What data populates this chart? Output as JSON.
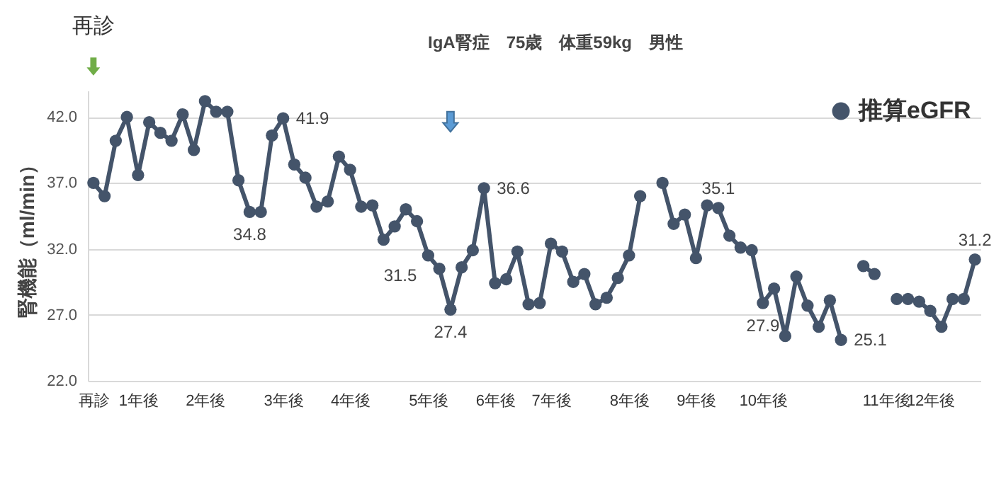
{
  "chart_data": {
    "type": "line",
    "title": "IgA腎症　75歳　体重59kg　男性",
    "ylabel": "腎機能（ml/min）",
    "annotations": [
      "再診"
    ],
    "categories": [
      "再診",
      null,
      null,
      null,
      "1年後",
      null,
      null,
      null,
      null,
      null,
      "2年後",
      null,
      null,
      null,
      null,
      null,
      null,
      "3年後",
      null,
      null,
      null,
      null,
      null,
      "4年後",
      null,
      null,
      null,
      null,
      null,
      null,
      "5年後",
      null,
      null,
      null,
      null,
      null,
      "6年後",
      null,
      null,
      null,
      null,
      "7年後",
      null,
      null,
      null,
      null,
      null,
      null,
      "8年後",
      null,
      null,
      null,
      null,
      null,
      "9年後",
      null,
      null,
      null,
      null,
      null,
      "10年後",
      null,
      null,
      null,
      null,
      null,
      null,
      null,
      null,
      null,
      null,
      "11年後",
      null,
      null,
      null,
      "12年後",
      null,
      null,
      null,
      null
    ],
    "series": [
      {
        "name": "推算eGFR",
        "color": "#44546a",
        "values": [
          37.0,
          36.0,
          40.2,
          42.0,
          37.6,
          41.6,
          40.8,
          40.2,
          42.2,
          39.5,
          43.2,
          42.4,
          42.4,
          37.2,
          34.8,
          34.8,
          40.6,
          41.9,
          38.4,
          37.4,
          35.2,
          35.6,
          39.0,
          38.0,
          35.2,
          35.3,
          32.7,
          33.7,
          35.0,
          34.1,
          31.5,
          30.5,
          27.4,
          30.6,
          31.9,
          36.6,
          29.4,
          29.7,
          31.8,
          27.8,
          27.9,
          32.4,
          31.8,
          29.5,
          30.1,
          27.8,
          28.3,
          29.8,
          31.5,
          36.0,
          null,
          37.0,
          33.9,
          34.6,
          31.3,
          35.3,
          35.1,
          33.0,
          32.1,
          31.9,
          27.9,
          29.0,
          25.4,
          29.9,
          27.7,
          26.1,
          28.1,
          25.1,
          null,
          30.7,
          30.1,
          null,
          28.2,
          28.2,
          28.0,
          27.3,
          26.1,
          28.2,
          28.2,
          31.2
        ],
        "value_labels": [
          null,
          null,
          null,
          null,
          null,
          null,
          null,
          null,
          null,
          null,
          null,
          null,
          null,
          null,
          "34.8",
          null,
          null,
          "41.9",
          null,
          null,
          null,
          null,
          null,
          null,
          null,
          null,
          null,
          null,
          null,
          null,
          "31.5",
          null,
          "27.4",
          null,
          null,
          "36.6",
          null,
          null,
          null,
          null,
          null,
          null,
          null,
          null,
          null,
          null,
          null,
          null,
          null,
          null,
          null,
          null,
          null,
          null,
          null,
          null,
          "35.1",
          null,
          null,
          null,
          "27.9",
          null,
          null,
          null,
          null,
          null,
          null,
          "25.1",
          null,
          null,
          null,
          null,
          null,
          null,
          null,
          null,
          null,
          null,
          null,
          "31.2"
        ]
      }
    ],
    "ylim": [
      22,
      44
    ],
    "yticks": [
      {
        "value": 22,
        "label": "22.0"
      },
      {
        "value": 27,
        "label": "27.0"
      },
      {
        "value": 32,
        "label": "32.0"
      },
      {
        "value": 37,
        "label": "37.0"
      },
      {
        "value": 42,
        "label": "42.0"
      }
    ],
    "grid": "y",
    "legend": "top right",
    "marker": "circle",
    "line_style": "solid"
  }
}
